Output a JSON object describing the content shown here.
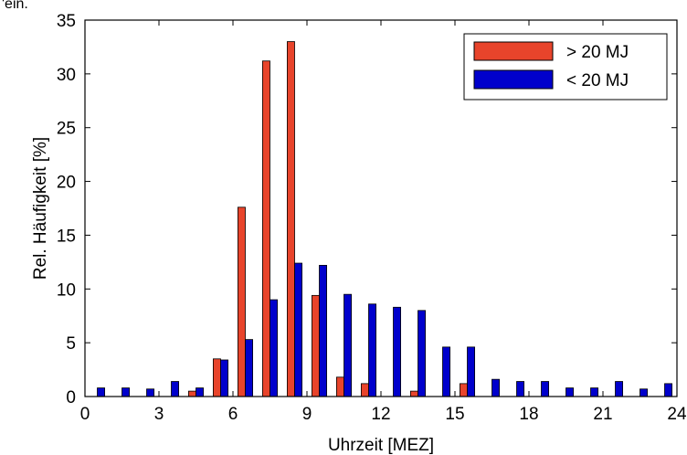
{
  "top_fragment": "'ein.",
  "chart_data": {
    "type": "bar",
    "xlabel": "Uhrzeit [MEZ]",
    "ylabel": "Rel. Häufigkeit [%]",
    "xlim": [
      0,
      24
    ],
    "ylim": [
      0,
      35
    ],
    "xticks": [
      0,
      3,
      6,
      9,
      12,
      15,
      18,
      21,
      24
    ],
    "yticks": [
      0,
      5,
      10,
      15,
      20,
      25,
      30,
      35
    ],
    "grid": false,
    "legend_position": "top-right",
    "bin_width_hours": 1,
    "x": [
      0.5,
      1.5,
      2.5,
      3.5,
      4.5,
      5.5,
      6.5,
      7.5,
      8.5,
      9.5,
      10.5,
      11.5,
      12.5,
      13.5,
      14.5,
      15.5,
      16.5,
      17.5,
      18.5,
      19.5,
      20.5,
      21.5,
      22.5,
      23.5
    ],
    "series": [
      {
        "name": "> 20 MJ",
        "color": "#e8442b",
        "values": [
          0,
          0,
          0,
          0,
          0.5,
          3.5,
          17.6,
          31.2,
          33.0,
          9.4,
          1.8,
          1.2,
          0,
          0.5,
          0,
          1.2,
          0,
          0,
          0,
          0,
          0,
          0,
          0,
          0
        ]
      },
      {
        "name": "< 20 MJ",
        "color": "#0000cc",
        "values": [
          0.8,
          0.8,
          0.7,
          1.4,
          0.8,
          3.4,
          5.3,
          9.0,
          12.4,
          12.2,
          9.5,
          8.6,
          8.3,
          8.0,
          4.6,
          4.6,
          1.6,
          1.4,
          1.4,
          0.8,
          0.8,
          1.4,
          0.7,
          1.2
        ]
      }
    ]
  }
}
